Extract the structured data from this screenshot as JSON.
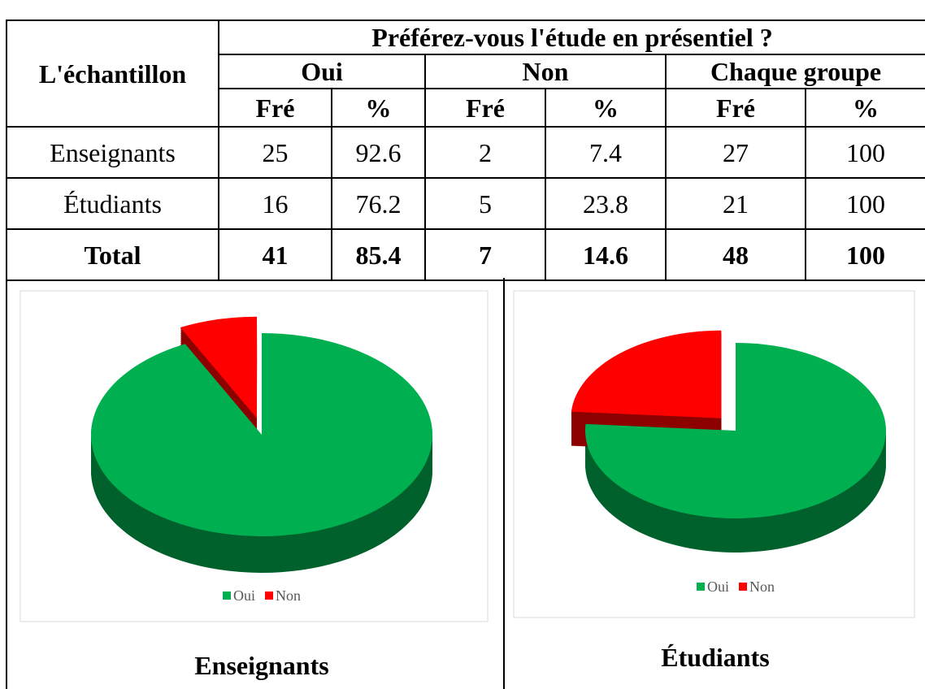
{
  "table": {
    "title": "Préférez-vous l'étude en présentiel ?",
    "row_header": "L'échantillon",
    "groups": [
      "Oui",
      "Non",
      "Chaque groupe"
    ],
    "subheaders": [
      "Fré",
      "%",
      "Fré",
      "%",
      "Fré",
      "%"
    ],
    "rows": [
      {
        "label": "Enseignants",
        "cells": [
          25,
          92.6,
          2,
          7.4,
          27,
          100
        ]
      },
      {
        "label": "Étudiants",
        "cells": [
          16,
          76.2,
          5,
          23.8,
          21,
          100
        ]
      },
      {
        "label": "Total",
        "cells": [
          41,
          85.4,
          7,
          14.6,
          48,
          100
        ]
      }
    ]
  },
  "chart_data": [
    {
      "type": "pie",
      "title": "Enseignants",
      "categories": [
        "Oui",
        "Non"
      ],
      "values": [
        92.6,
        7.4
      ],
      "colors": [
        "#00b050",
        "#ff0000"
      ],
      "legend": "bottom"
    },
    {
      "type": "pie",
      "title": "Étudiants",
      "categories": [
        "Oui",
        "Non"
      ],
      "values": [
        76.2,
        23.8
      ],
      "colors": [
        "#00b050",
        "#ff0000"
      ],
      "legend": "bottom"
    }
  ]
}
